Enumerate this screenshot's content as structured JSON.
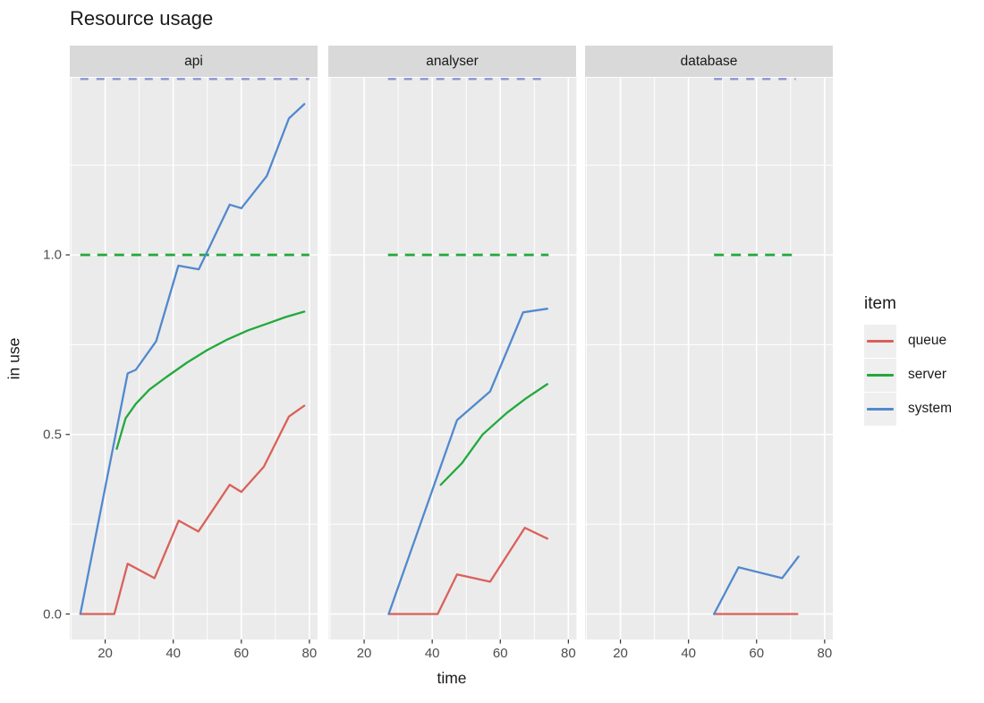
{
  "title": "Resource usage",
  "axes": {
    "x_label": "time",
    "y_label": "in use",
    "x_tick_labels": [
      "20",
      "40",
      "60",
      "80"
    ],
    "y_tick_labels": [
      "0.0",
      "0.5",
      "1.0"
    ]
  },
  "legend": {
    "title": "item",
    "items": [
      {
        "label": "queue",
        "color": "#d9615a"
      },
      {
        "label": "server",
        "color": "#22a93c"
      },
      {
        "label": "system",
        "color": "#5189ce"
      }
    ]
  },
  "colors": {
    "panel_bg": "#ebebeb",
    "strip_bg": "#d9d9d9",
    "grid": "#ffffff",
    "queue": "#d9615a",
    "server": "#22a93c",
    "system": "#5189ce",
    "capacity_dashed_green": "#22a93c",
    "capacity_dashed_blue": "#8d93d6",
    "axis_tick_mark": "#333333",
    "tick_text": "#4d4d4d",
    "text": "#1a1a1a",
    "legend_key_bg": "#efefef"
  },
  "chart_data": {
    "type": "line",
    "title": "Resource usage",
    "xlabel": "time",
    "ylabel": "in use",
    "xlim": [
      9.6,
      82.4
    ],
    "ylim": [
      -0.07,
      1.49
    ],
    "x_ticks": [
      20,
      40,
      60,
      80
    ],
    "x_minor_ticks": [
      10,
      30,
      50,
      70
    ],
    "y_ticks": [
      0,
      0.5,
      1.0
    ],
    "y_minor_ticks": [
      0.25,
      0.75,
      1.25
    ],
    "grid": true,
    "legend_position": "right",
    "series_names": [
      "queue",
      "server",
      "system"
    ],
    "dashed_reference_lines": {
      "server_capacity_value": 1.0,
      "system_capacity_value": 1.49,
      "note": "dashed lines span each facet's observed time range"
    },
    "facets": [
      {
        "label": "api",
        "time_range": [
          12.7,
          80
        ],
        "series": {
          "queue": [
            [
              13,
              0
            ],
            [
              22.7,
              0
            ],
            [
              26.6,
              0.14
            ],
            [
              34.5,
              0.1
            ],
            [
              41.6,
              0.26
            ],
            [
              47.4,
              0.23
            ],
            [
              56.6,
              0.36
            ],
            [
              60,
              0.34
            ],
            [
              66.6,
              0.41
            ],
            [
              74,
              0.55
            ],
            [
              78.5,
              0.58
            ]
          ],
          "server": [
            [
              23.4,
              0.46
            ],
            [
              26,
              0.545
            ],
            [
              29,
              0.585
            ],
            [
              33,
              0.625
            ],
            [
              38,
              0.66
            ],
            [
              44,
              0.7
            ],
            [
              50,
              0.735
            ],
            [
              56,
              0.765
            ],
            [
              62,
              0.79
            ],
            [
              68,
              0.81
            ],
            [
              73,
              0.827
            ],
            [
              78.5,
              0.842
            ]
          ],
          "system": [
            [
              12.7,
              0
            ],
            [
              26.6,
              0.67
            ],
            [
              29,
              0.68
            ],
            [
              35,
              0.76
            ],
            [
              41.5,
              0.97
            ],
            [
              47.5,
              0.96
            ],
            [
              56.6,
              1.14
            ],
            [
              60,
              1.13
            ],
            [
              67.5,
              1.22
            ],
            [
              74,
              1.38
            ],
            [
              78.5,
              1.42
            ]
          ]
        }
      },
      {
        "label": "analyser",
        "time_range": [
          27,
          74.2
        ],
        "series": {
          "queue": [
            [
              27.2,
              0
            ],
            [
              41.6,
              0
            ],
            [
              47.3,
              0.11
            ],
            [
              57,
              0.09
            ],
            [
              67.2,
              0.24
            ],
            [
              73.8,
              0.21
            ]
          ],
          "server": [
            [
              42.5,
              0.36
            ],
            [
              48.7,
              0.42
            ],
            [
              54.8,
              0.5
            ],
            [
              61.9,
              0.56
            ],
            [
              67.5,
              0.6
            ],
            [
              73.8,
              0.64
            ]
          ],
          "system": [
            [
              27.2,
              0
            ],
            [
              47.3,
              0.54
            ],
            [
              57,
              0.62
            ],
            [
              66.7,
              0.84
            ],
            [
              73.8,
              0.85
            ]
          ]
        }
      },
      {
        "label": "database",
        "time_range": [
          47.5,
          71.5
        ],
        "series": {
          "queue": [
            [
              47.5,
              0
            ],
            [
              72,
              0
            ]
          ],
          "server": [],
          "system": [
            [
              47.5,
              0
            ],
            [
              54.7,
              0.13
            ],
            [
              67.5,
              0.1
            ],
            [
              72.3,
              0.16
            ]
          ]
        }
      }
    ]
  }
}
